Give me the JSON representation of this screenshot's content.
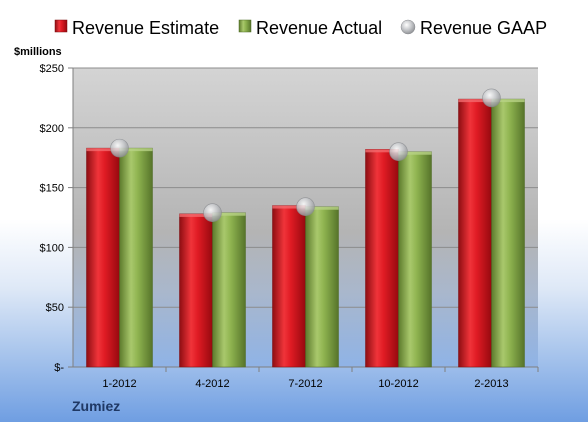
{
  "company": "Zumiez",
  "colors": {
    "estimate": "#e01b24",
    "actual": "#8fb450",
    "gaap": "#c7c9cc"
  },
  "chart_data": {
    "type": "bar",
    "unit_label": "$millions",
    "categories": [
      "1-2012",
      "4-2012",
      "7-2012",
      "10-2012",
      "2-2013"
    ],
    "series": [
      {
        "name": "Revenue Estimate",
        "kind": "bar",
        "values": [
          183,
          128,
          135,
          182,
          224
        ]
      },
      {
        "name": "Revenue Actual",
        "kind": "bar",
        "values": [
          183,
          129,
          134,
          180,
          224
        ]
      },
      {
        "name": "Revenue GAAP",
        "kind": "marker",
        "values": [
          183,
          129,
          134,
          180,
          225
        ]
      }
    ],
    "ylim": [
      0,
      250
    ],
    "yticks": [
      0,
      50,
      100,
      150,
      200,
      250
    ],
    "ytick_labels": [
      "$-",
      "$50",
      "$100",
      "$150",
      "$200",
      "$250"
    ],
    "grid": true,
    "legend_position": "top"
  }
}
